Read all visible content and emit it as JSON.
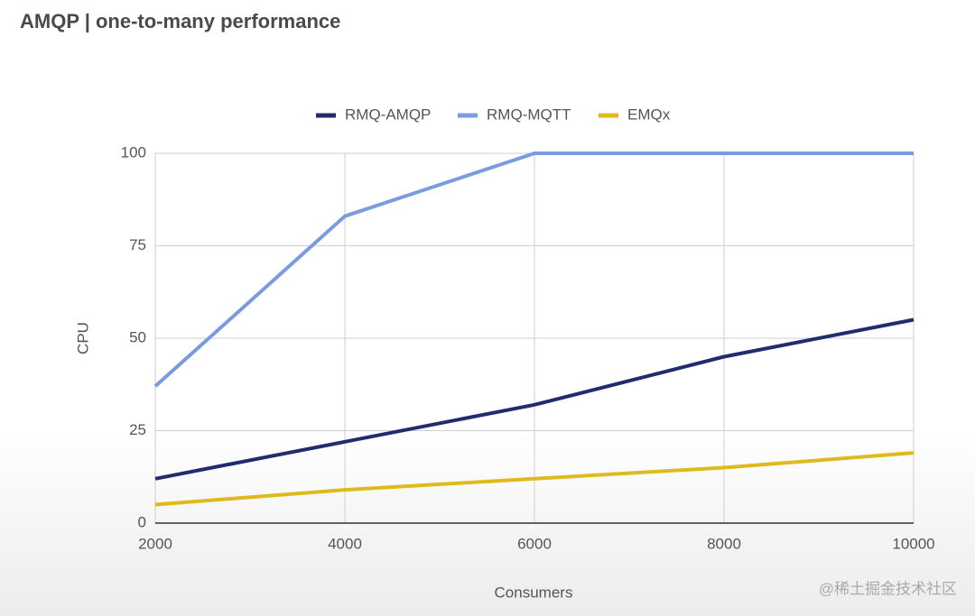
{
  "chart_data": {
    "type": "line",
    "title": "AMQP | one-to-many performance",
    "x_label": "Consumers",
    "y_label": "CPU",
    "x": [
      2000,
      4000,
      6000,
      8000,
      10000
    ],
    "series": [
      {
        "name": "RMQ-AMQP",
        "color": "#1f2d6e",
        "values": [
          12,
          22,
          32,
          45,
          55
        ]
      },
      {
        "name": "RMQ-MQTT",
        "color": "#7b9be0",
        "values": [
          37,
          83,
          100,
          100,
          100
        ]
      },
      {
        "name": "EMQx",
        "color": "#e0b91c",
        "values": [
          5,
          9,
          12,
          15,
          19
        ]
      }
    ],
    "xlim": [
      2000,
      10000
    ],
    "xticks": [
      2000,
      4000,
      6000,
      8000,
      10000
    ],
    "ylim": [
      0,
      100
    ],
    "yticks": [
      0,
      25,
      50,
      75,
      100
    ],
    "grid": true,
    "legend": "top",
    "watermark": "@稀土掘金技术社区"
  }
}
